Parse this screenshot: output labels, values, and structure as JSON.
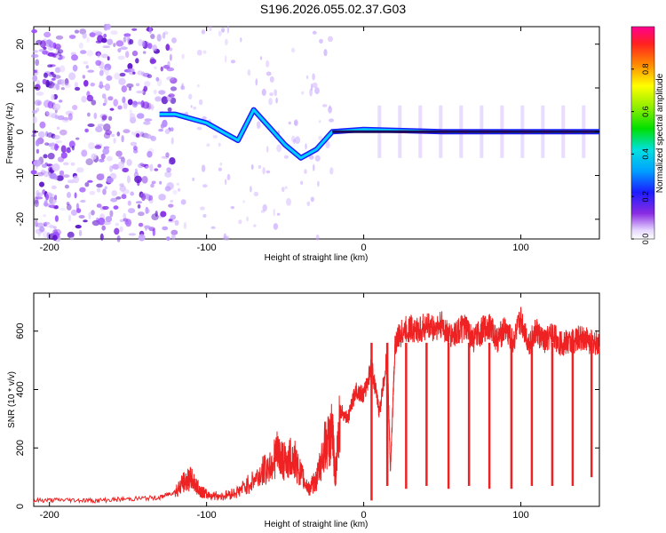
{
  "title": "S196.2026.055.02.37.G03",
  "colors": {
    "snr_line": "#ee2222",
    "spectro_points": "#8a2be2",
    "axis": "#000000"
  },
  "chart_data": [
    {
      "type": "heatmap",
      "title": "S196.2026.055.02.37.G03",
      "xlabel": "Height of straight line (km)",
      "ylabel": "Frequency (Hz)",
      "xlim": [
        -210,
        150
      ],
      "ylim": [
        -24.5,
        24
      ],
      "xticks": [
        -200,
        -100,
        0,
        100
      ],
      "yticks": [
        -20,
        -10,
        0,
        10,
        20
      ],
      "colorbar": {
        "label": "Normalized spectral amplitude",
        "range": [
          0,
          1
        ],
        "ticks": [
          0.0,
          0.2,
          0.4,
          0.6,
          0.8
        ]
      },
      "ridge": {
        "description_points_km_hz": [
          [
            -130,
            4
          ],
          [
            -120,
            4
          ],
          [
            -110,
            3
          ],
          [
            -100,
            2
          ],
          [
            -90,
            0
          ],
          [
            -80,
            -2
          ],
          [
            -70,
            5
          ],
          [
            -60,
            1
          ],
          [
            -50,
            -3
          ],
          [
            -40,
            -6
          ],
          [
            -35,
            -5
          ],
          [
            -30,
            -4
          ],
          [
            -20,
            0
          ],
          [
            0,
            0.5
          ],
          [
            50,
            0
          ],
          [
            100,
            0
          ],
          [
            150,
            0
          ]
        ]
      }
    },
    {
      "type": "line",
      "title": "",
      "xlabel": "Height of straight line (km)",
      "ylabel": "SNR (10 * v/v)",
      "xlim": [
        -210,
        150
      ],
      "ylim": [
        0,
        730
      ],
      "xticks": [
        -200,
        -100,
        0,
        100
      ],
      "yticks": [
        0,
        200,
        400,
        600
      ],
      "series": [
        {
          "name": "SNR",
          "x": [
            -210,
            -190,
            -170,
            -150,
            -130,
            -120,
            -115,
            -110,
            -105,
            -100,
            -90,
            -80,
            -70,
            -60,
            -55,
            -50,
            -45,
            -40,
            -35,
            -30,
            -25,
            -20,
            -18,
            -15,
            -10,
            -5,
            0,
            5,
            10,
            15,
            17,
            20,
            25,
            30,
            35,
            40,
            45,
            50,
            55,
            60,
            65,
            70,
            75,
            80,
            85,
            90,
            95,
            100,
            105,
            110,
            115,
            120,
            125,
            130,
            135,
            140,
            145,
            150
          ],
          "y": [
            20,
            22,
            20,
            25,
            30,
            50,
            80,
            95,
            60,
            40,
            35,
            50,
            90,
            140,
            180,
            150,
            170,
            110,
            60,
            90,
            200,
            250,
            100,
            330,
            300,
            400,
            380,
            480,
            320,
            520,
            120,
            560,
            600,
            610,
            600,
            620,
            610,
            620,
            580,
            600,
            610,
            570,
            600,
            620,
            570,
            610,
            560,
            640,
            560,
            600,
            560,
            590,
            560,
            560,
            570,
            580,
            560,
            560
          ]
        }
      ],
      "dips": [
        {
          "x": 5,
          "y": 20
        },
        {
          "x": 15,
          "y": 70
        },
        {
          "x": 27,
          "y": 60
        },
        {
          "x": 40,
          "y": 70
        },
        {
          "x": 54,
          "y": 60
        },
        {
          "x": 67,
          "y": 70
        },
        {
          "x": 80,
          "y": 60
        },
        {
          "x": 94,
          "y": 60
        },
        {
          "x": 107,
          "y": 70
        },
        {
          "x": 120,
          "y": 70
        },
        {
          "x": 133,
          "y": 70
        },
        {
          "x": 145,
          "y": 100
        }
      ]
    }
  ]
}
